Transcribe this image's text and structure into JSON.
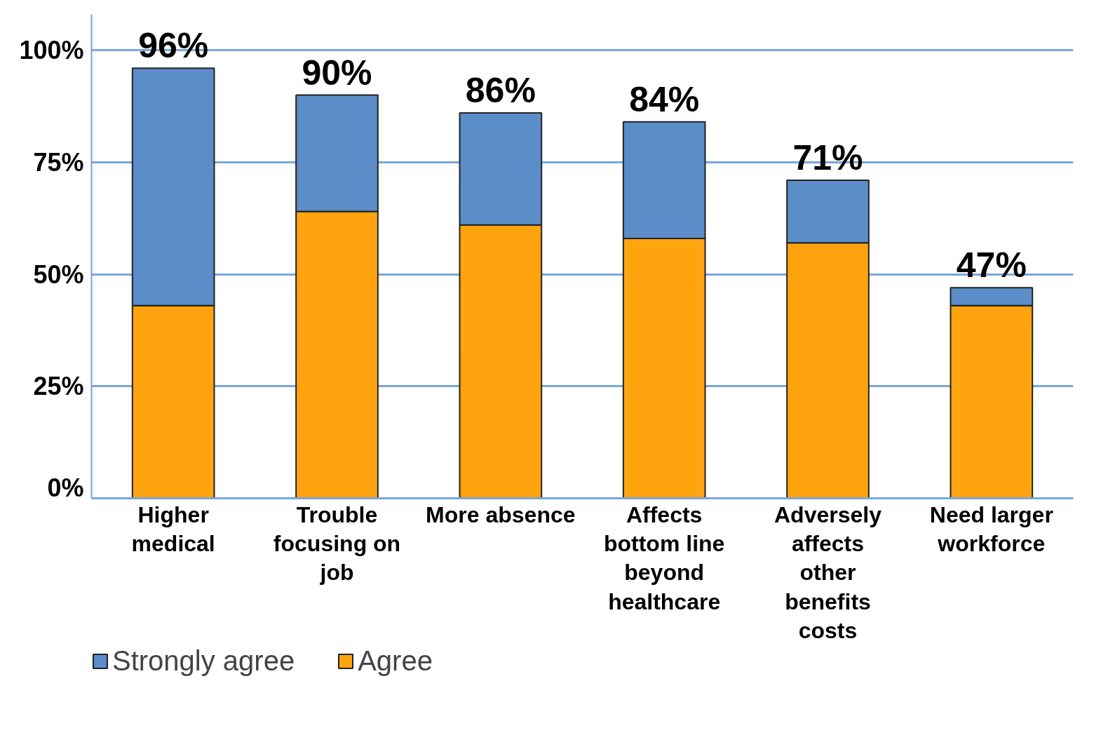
{
  "chart_data": {
    "type": "bar",
    "stacked": true,
    "categories": [
      "Higher medical",
      "Trouble focusing on job",
      "More absence",
      "Affects bottom line beyond healthcare",
      "Adversely affects other benefits costs",
      "Need larger workforce"
    ],
    "series": [
      {
        "name": "Agree",
        "color": "#ffa30f",
        "values": [
          43,
          64,
          61,
          58,
          57,
          43
        ]
      },
      {
        "name": "Strongly agree",
        "color": "#5b8dc9",
        "values": [
          53,
          26,
          25,
          26,
          14,
          4
        ]
      }
    ],
    "totals": [
      "96%",
      "90%",
      "86%",
      "84%",
      "71%",
      "47%"
    ],
    "ylim": [
      0,
      108
    ],
    "yticks": [
      {
        "value": 0,
        "label": "0%"
      },
      {
        "value": 25,
        "label": "25%"
      },
      {
        "value": 50,
        "label": "50%"
      },
      {
        "value": 75,
        "label": "75%"
      },
      {
        "value": 100,
        "label": "100%"
      }
    ],
    "grid": "y",
    "legend": "bottom left"
  }
}
